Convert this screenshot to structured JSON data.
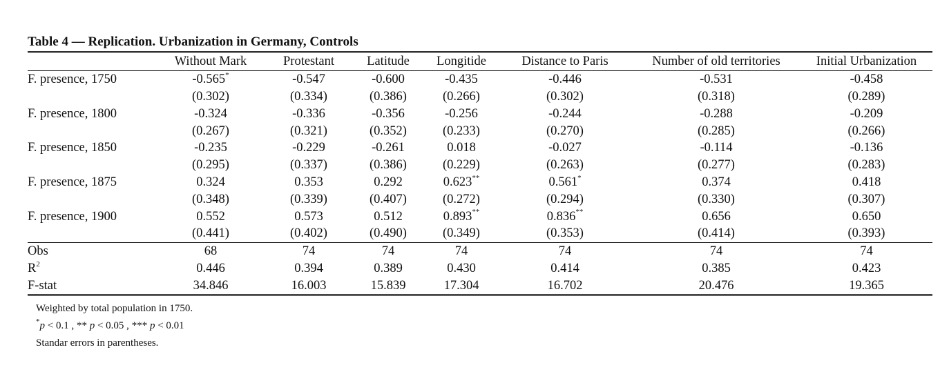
{
  "caption": "Table 4 — Replication. Urbanization in Germany, Controls",
  "columns": [
    "",
    "Without Mark",
    "Protestant",
    "Latitude",
    "Longitide",
    "Distance to Paris",
    "Number of old territories",
    "Initial Urbanization"
  ],
  "rows": [
    {
      "label": "F. presence, 1750",
      "coef": [
        "-0.565",
        "-0.547",
        "-0.600",
        "-0.435",
        "-0.446",
        "-0.531",
        "-0.458"
      ],
      "stars": [
        "*",
        "",
        "",
        "",
        "",
        "",
        ""
      ],
      "se": [
        "(0.302)",
        "(0.334)",
        "(0.386)",
        "(0.266)",
        "(0.302)",
        "(0.318)",
        "(0.289)"
      ]
    },
    {
      "label": "F. presence, 1800",
      "coef": [
        "-0.324",
        "-0.336",
        "-0.356",
        "-0.256",
        "-0.244",
        "-0.288",
        "-0.209"
      ],
      "stars": [
        "",
        "",
        "",
        "",
        "",
        "",
        ""
      ],
      "se": [
        "(0.267)",
        "(0.321)",
        "(0.352)",
        "(0.233)",
        "(0.270)",
        "(0.285)",
        "(0.266)"
      ]
    },
    {
      "label": "F. presence, 1850",
      "coef": [
        "-0.235",
        "-0.229",
        "-0.261",
        "0.018",
        "-0.027",
        "-0.114",
        "-0.136"
      ],
      "stars": [
        "",
        "",
        "",
        "",
        "",
        "",
        ""
      ],
      "se": [
        "(0.295)",
        "(0.337)",
        "(0.386)",
        "(0.229)",
        "(0.263)",
        "(0.277)",
        "(0.283)"
      ]
    },
    {
      "label": "F. presence, 1875",
      "coef": [
        "0.324",
        "0.353",
        "0.292",
        "0.623",
        "0.561",
        "0.374",
        "0.418"
      ],
      "stars": [
        "",
        "",
        "",
        "**",
        "*",
        "",
        ""
      ],
      "se": [
        "(0.348)",
        "(0.339)",
        "(0.407)",
        "(0.272)",
        "(0.294)",
        "(0.330)",
        "(0.307)"
      ]
    },
    {
      "label": "F. presence, 1900",
      "coef": [
        "0.552",
        "0.573",
        "0.512",
        "0.893",
        "0.836",
        "0.656",
        "0.650"
      ],
      "stars": [
        "",
        "",
        "",
        "**",
        "**",
        "",
        ""
      ],
      "se": [
        "(0.441)",
        "(0.402)",
        "(0.490)",
        "(0.349)",
        "(0.353)",
        "(0.414)",
        "(0.393)"
      ]
    }
  ],
  "stats": [
    {
      "label": "Obs",
      "values": [
        "68",
        "74",
        "74",
        "74",
        "74",
        "74",
        "74"
      ]
    },
    {
      "label": "R",
      "sup": "2",
      "values": [
        "0.446",
        "0.394",
        "0.389",
        "0.430",
        "0.414",
        "0.385",
        "0.423"
      ]
    },
    {
      "label": "F-stat",
      "values": [
        "34.846",
        "16.003",
        "15.839",
        "17.304",
        "16.702",
        "20.476",
        "19.365"
      ]
    }
  ],
  "notes": {
    "weighting": "Weighted by total population in 1750.",
    "significance": {
      "s1": "*",
      "p1": "p",
      "c1": " < 0.1 , ",
      "s2": "** ",
      "p2": "p",
      "c2": " < 0.05 , ",
      "s3": "*** ",
      "p3": "p",
      "c3": " < 0.01"
    },
    "se_note": "Standar errors in parentheses."
  }
}
